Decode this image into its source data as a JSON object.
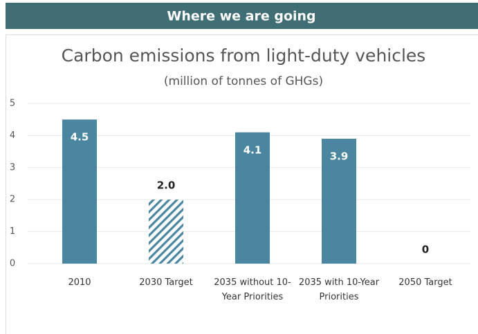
{
  "header": {
    "title": "Where we are going"
  },
  "chart_data": {
    "type": "bar",
    "title": "Carbon emissions from light-duty vehicles",
    "subtitle": "(million of tonnes of GHGs)",
    "categories": [
      "2010",
      "2030 Target",
      "2035 without 10-Year Priorities",
      "2035 with 10-Year Priorities",
      "2050 Target"
    ],
    "values": [
      4.5,
      2.0,
      4.1,
      3.9,
      0
    ],
    "value_labels": [
      "4.5",
      "2.0",
      "4.1",
      "3.9",
      "0"
    ],
    "color": "#4a86a0",
    "hatched": [
      false,
      true,
      false,
      false,
      false
    ],
    "ylim": [
      0,
      5
    ],
    "yticks": [
      0,
      1,
      2,
      3,
      4,
      5
    ],
    "grid": true
  }
}
